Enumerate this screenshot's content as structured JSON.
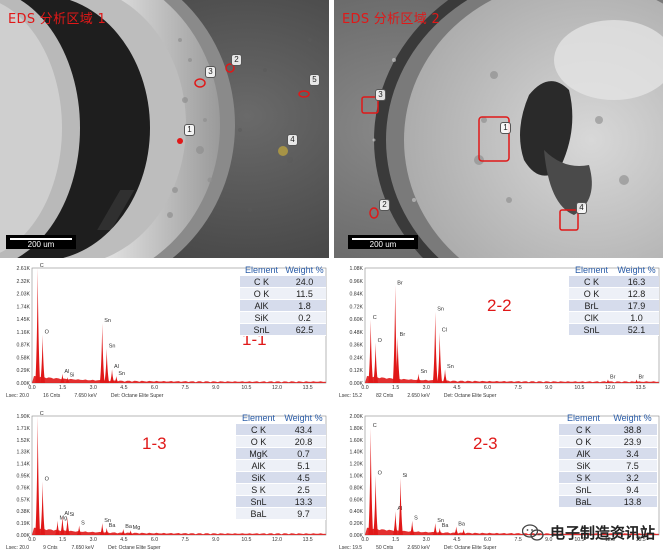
{
  "sem_panels": [
    {
      "title": "EDS 分析区域 1",
      "scale": "200 um",
      "markers": [
        "1",
        "2",
        "3",
        "4",
        "5"
      ]
    },
    {
      "title": "EDS 分析区域 2",
      "scale": "200 um",
      "markers": [
        "1",
        "2",
        "3",
        "4"
      ]
    }
  ],
  "eds_panels": [
    {
      "label": "1-1",
      "table": {
        "col1": "Element",
        "col2": "Weight %",
        "rows": [
          [
            "C K",
            "24.0"
          ],
          [
            "O K",
            "11.5"
          ],
          [
            "AlK",
            "1.8"
          ],
          [
            "SiK",
            "0.2"
          ],
          [
            "SnL",
            "62.5"
          ]
        ]
      },
      "y_ticks": [
        "2.61K",
        "2.32K",
        "2.03K",
        "1.74K",
        "1.45K",
        "1.16K",
        "0.87K",
        "0.58K",
        "0.29K",
        "0.00K"
      ],
      "x_ticks": [
        "0.0",
        "1.5",
        "3.0",
        "4.5",
        "6.0",
        "7.5",
        "9.0",
        "10.5",
        "12.0",
        "13.5"
      ],
      "peak_labels": [
        "C",
        "O",
        "Al",
        "Si",
        "Sn",
        "Sn",
        "Al",
        "Sn"
      ],
      "footer": [
        "Lsec: 20.0",
        "16 Cnts",
        "7.650 keV",
        "Det: Octane Elite Super"
      ]
    },
    {
      "label": "2-2",
      "table": {
        "col1": "Element",
        "col2": "Weight %",
        "rows": [
          [
            "C K",
            "16.3"
          ],
          [
            "O K",
            "12.8"
          ],
          [
            "BrL",
            "17.9"
          ],
          [
            "ClK",
            "1.0"
          ],
          [
            "SnL",
            "52.1"
          ]
        ]
      },
      "y_ticks": [
        "1.08K",
        "0.96K",
        "0.84K",
        "0.72K",
        "0.60K",
        "0.48K",
        "0.36K",
        "0.24K",
        "0.12K",
        "0.00K"
      ],
      "x_ticks": [
        "0.0",
        "1.5",
        "3.0",
        "4.5",
        "6.0",
        "7.5",
        "9.0",
        "10.5",
        "12.0",
        "13.5"
      ],
      "peak_labels": [
        "C",
        "O",
        "Br",
        "Br",
        "Sn",
        "Sn",
        "Cl",
        "Sn",
        "Br",
        "Br"
      ],
      "footer": [
        "Lsec: 15.2",
        "82 Cnts",
        "2.650 keV",
        "Det: Octane Elite Super"
      ]
    },
    {
      "label": "1-3",
      "table": {
        "col1": "Element",
        "col2": "Weight %",
        "rows": [
          [
            "C K",
            "43.4"
          ],
          [
            "O K",
            "20.8"
          ],
          [
            "MgK",
            "0.7"
          ],
          [
            "AlK",
            "5.1"
          ],
          [
            "SiK",
            "4.5"
          ],
          [
            "S K",
            "2.5"
          ],
          [
            "SnL",
            "13.3"
          ],
          [
            "BaL",
            "9.7"
          ]
        ]
      },
      "y_ticks": [
        "1.90K",
        "1.71K",
        "1.52K",
        "1.33K",
        "1.14K",
        "0.95K",
        "0.76K",
        "0.57K",
        "0.38K",
        "0.19K",
        "0.00K"
      ],
      "x_ticks": [
        "0.0",
        "1.5",
        "3.0",
        "4.5",
        "6.0",
        "7.5",
        "9.0",
        "10.5",
        "12.0",
        "13.5"
      ],
      "peak_labels": [
        "C",
        "O",
        "Mg",
        "Al",
        "Si",
        "S",
        "Sn",
        "Ba",
        "Ba",
        "Mg"
      ],
      "footer": [
        "Lsec: 20.0",
        "9 Cnts",
        "7.650 keV",
        "Det: Octane Elite Super"
      ]
    },
    {
      "label": "2-3",
      "table": {
        "col1": "Element",
        "col2": "Weight %",
        "rows": [
          [
            "C K",
            "38.8"
          ],
          [
            "O K",
            "23.9"
          ],
          [
            "AlK",
            "3.4"
          ],
          [
            "SiK",
            "7.5"
          ],
          [
            "S K",
            "3.2"
          ],
          [
            "SnL",
            "9.4"
          ],
          [
            "BaL",
            "13.8"
          ]
        ]
      },
      "y_ticks": [
        "2.00K",
        "1.80K",
        "1.60K",
        "1.40K",
        "1.20K",
        "1.00K",
        "0.80K",
        "0.60K",
        "0.40K",
        "0.20K",
        "0.00K"
      ],
      "x_ticks": [
        "0.0",
        "1.5",
        "3.0",
        "4.5",
        "6.0",
        "7.5",
        "9.0",
        "10.5",
        "12.0",
        "13.5"
      ],
      "peak_labels": [
        "C",
        "O",
        "Al",
        "Si",
        "S",
        "Sn",
        "Ba",
        "Ba"
      ],
      "footer": [
        "Lsec: 19.5",
        "50 Cnts",
        "2.650 keV",
        "Det: Octane Elite Super"
      ]
    }
  ],
  "watermark": {
    "text": "电子制造资讯站",
    "icon": "wechat-icon"
  },
  "colors": {
    "title_red": "#e01818",
    "spectrum_red": "#e01818",
    "table_header": "#2b5da8"
  }
}
